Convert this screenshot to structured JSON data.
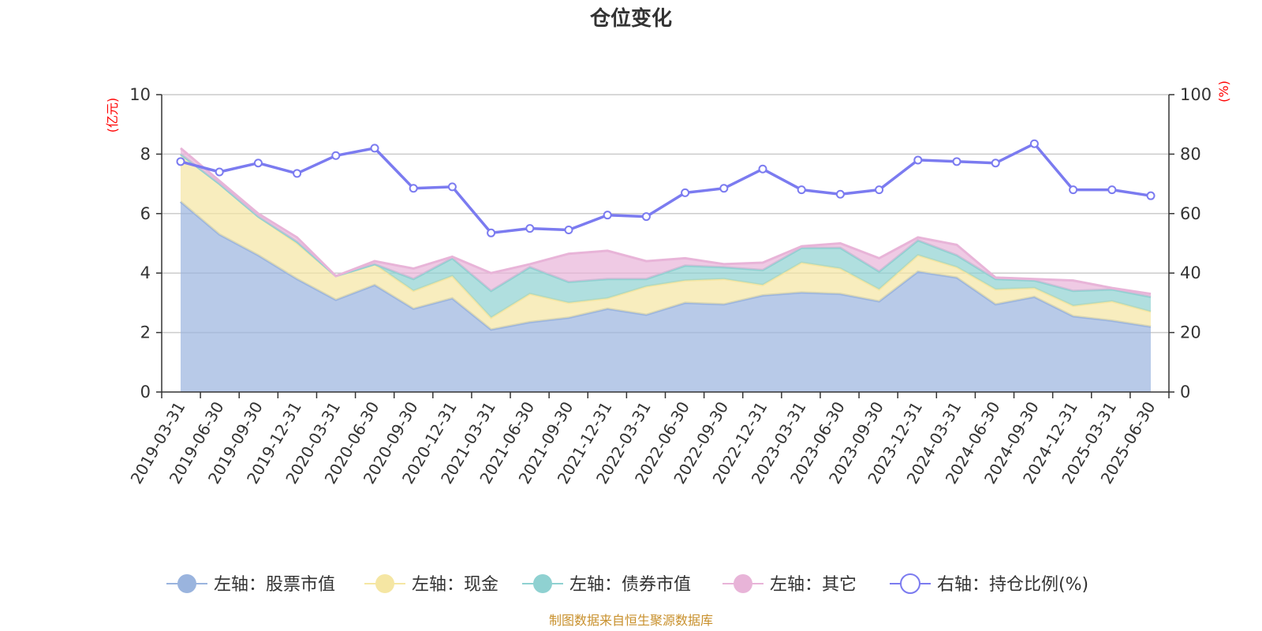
{
  "chart_data": {
    "type": "area",
    "title": "仓位变化",
    "left_axis": {
      "unit_label": "(亿元)",
      "range": [
        0,
        10
      ],
      "ticks": [
        "0",
        "2",
        "4",
        "6",
        "8",
        "10"
      ]
    },
    "right_axis": {
      "unit_label": "(%)",
      "range": [
        0,
        100
      ],
      "ticks": [
        "0",
        "20",
        "40",
        "60",
        "80",
        "100"
      ]
    },
    "grid": true,
    "categories": [
      "2019-03-31",
      "2019-06-30",
      "2019-09-30",
      "2019-12-31",
      "2020-03-31",
      "2020-06-30",
      "2020-09-30",
      "2020-12-31",
      "2021-03-31",
      "2021-06-30",
      "2021-09-30",
      "2021-12-31",
      "2022-03-31",
      "2022-06-30",
      "2022-09-30",
      "2022-12-31",
      "2023-03-31",
      "2023-06-30",
      "2023-09-30",
      "2023-12-31",
      "2024-03-31",
      "2024-06-30",
      "2024-09-30",
      "2024-12-31",
      "2025-03-31",
      "2025-06-30"
    ],
    "series": [
      {
        "name": "左轴：股票市值",
        "axis": "left",
        "stacked": true,
        "color": "#9ab4de",
        "values": [
          6.4,
          5.3,
          4.6,
          3.8,
          3.1,
          3.6,
          2.8,
          3.15,
          2.1,
          2.35,
          2.5,
          2.8,
          2.6,
          3.0,
          2.95,
          3.25,
          3.35,
          3.3,
          3.05,
          4.05,
          3.85,
          2.95,
          3.2,
          2.55,
          2.4,
          2.2
        ]
      },
      {
        "name": "左轴：现金",
        "axis": "left",
        "stacked": true,
        "color": "#f5e6a3",
        "values": [
          1.6,
          1.7,
          1.3,
          1.2,
          0.8,
          0.7,
          0.6,
          0.75,
          0.4,
          0.95,
          0.5,
          0.35,
          0.95,
          0.75,
          0.85,
          0.35,
          1.0,
          0.85,
          0.4,
          0.55,
          0.35,
          0.5,
          0.3,
          0.35,
          0.65,
          0.5
        ]
      },
      {
        "name": "左轴：债券市值",
        "axis": "left",
        "stacked": true,
        "color": "#8fd1d1",
        "values": [
          0.0,
          0.0,
          0.0,
          0.05,
          0.0,
          0.0,
          0.4,
          0.6,
          0.9,
          0.9,
          0.7,
          0.65,
          0.25,
          0.5,
          0.4,
          0.5,
          0.5,
          0.7,
          0.6,
          0.5,
          0.4,
          0.35,
          0.25,
          0.5,
          0.4,
          0.5
        ]
      },
      {
        "name": "左轴：其它",
        "axis": "left",
        "stacked": true,
        "color": "#e8b4d8",
        "values": [
          0.2,
          0.1,
          0.1,
          0.15,
          0.0,
          0.1,
          0.35,
          0.05,
          0.6,
          0.1,
          0.95,
          0.95,
          0.6,
          0.25,
          0.1,
          0.25,
          0.05,
          0.15,
          0.45,
          0.1,
          0.35,
          0.05,
          0.05,
          0.35,
          0.05,
          0.1
        ]
      },
      {
        "name": "右轴：持仓比例(%)",
        "axis": "right",
        "type": "line",
        "color": "#7b7bf0",
        "values": [
          77.5,
          74,
          77,
          73.5,
          79.5,
          82,
          68.5,
          69,
          53.5,
          55,
          54.5,
          59.5,
          59,
          67,
          68.5,
          75,
          68,
          66.5,
          68,
          78,
          77.5,
          77,
          83.5,
          68,
          68,
          66
        ]
      }
    ]
  },
  "footer": {
    "source": "制图数据来自恒生聚源数据库",
    "source_color": "#c8902c"
  },
  "colors": {
    "unit_label": "#ff0000",
    "axis": "#333333",
    "grid": "#cccccc"
  }
}
